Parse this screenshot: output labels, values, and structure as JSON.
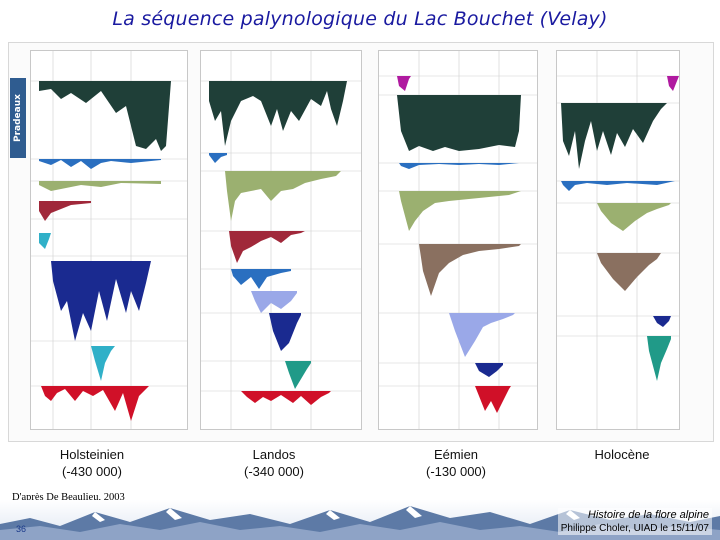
{
  "slide": {
    "title": "La séquence palynologique du Lac Bouchet (Velay)",
    "left_strip_label": "Pradeaux",
    "source_credit": "D'après De Beaulieu, 2003",
    "slide_number": "36",
    "footer_subject": "Histoire de la flore alpine",
    "footer_author": "Philippe Choler, UIAD le 15/11/07"
  },
  "periods": [
    {
      "name": "Holsteinien",
      "age": "(-430 000)"
    },
    {
      "name": "Landos",
      "age": "(-340 000)"
    },
    {
      "name": "Eémien",
      "age": "(-130 000)"
    },
    {
      "name": "Holocène",
      "age": ""
    }
  ],
  "colors": {
    "pinus": "#1f3f38",
    "betula": "#2a6fc0",
    "quercus": "#9bb070",
    "corylus": "#a0283a",
    "carpinus": "#8a7060",
    "abies": "#1a2a90",
    "picea": "#30b0c8",
    "fagus": "#2a8a6a",
    "cyperaceae": "#d01028",
    "juniperus": "#b01aa0",
    "lavender": "#9aa8e8",
    "teal": "#209a88"
  }
}
